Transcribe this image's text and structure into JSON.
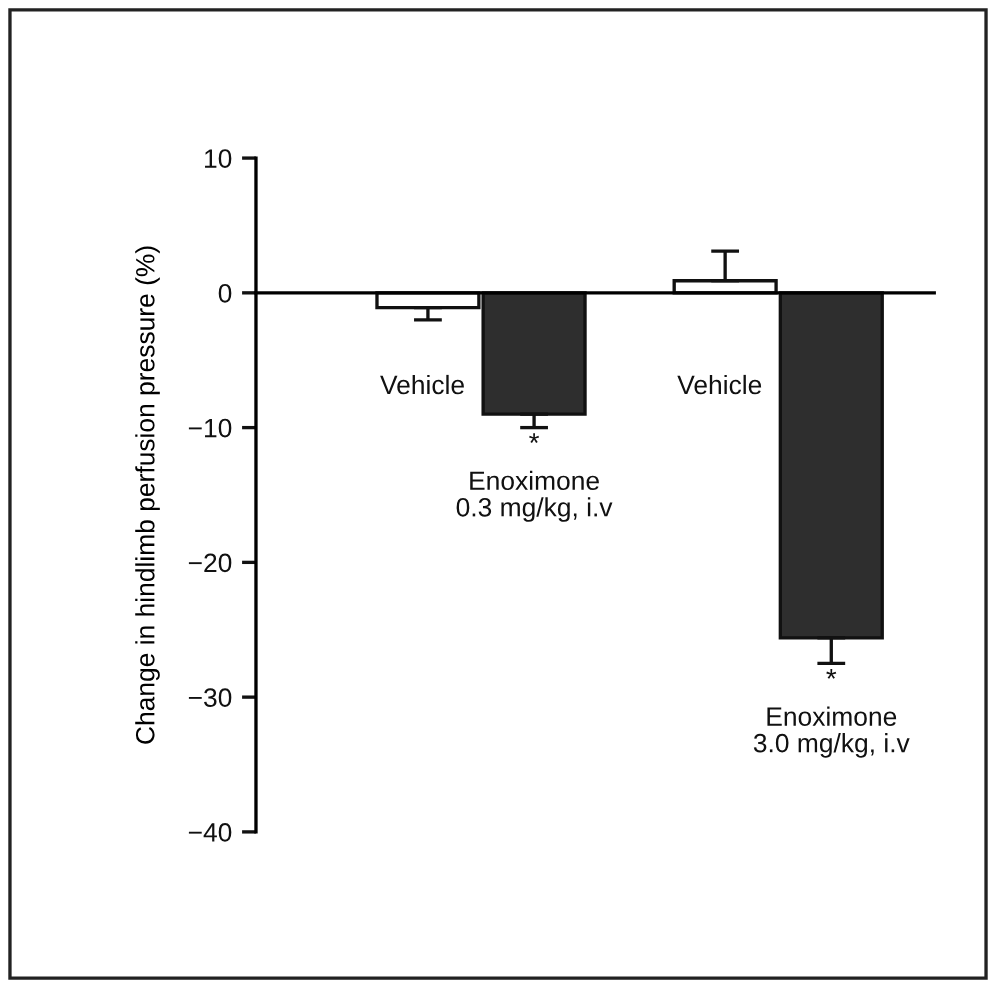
{
  "chart_data": {
    "type": "bar",
    "categories": [
      "Vehicle",
      "Enoximone\n0.3 mg/kg, i.v",
      "Vehicle",
      "Enoximone\n3.0 mg/kg, i.v"
    ],
    "values": [
      -1.1,
      -9.0,
      0.9,
      -25.6
    ],
    "colors": [
      "#ffffff",
      "#2e2e2e",
      "#ffffff",
      "#2e2e2e"
    ],
    "errors": [
      [
        -2,
        -1.1
      ],
      [
        -10,
        -9.0
      ],
      [
        0.9,
        3.1
      ],
      [
        -27.5,
        -25.6
      ]
    ],
    "ylabel": "Change in hindlimb perfusion pressure (%)",
    "ylim": [
      -40,
      10
    ],
    "yticks": [
      10,
      0,
      {
        "value": -10,
        "label": "−10"
      },
      {
        "value": -20,
        "label": "−20"
      },
      {
        "value": -30,
        "label": "−30"
      },
      {
        "value": -40,
        "label": "−40"
      }
    ],
    "annotations": [
      "*",
      "*"
    ]
  }
}
